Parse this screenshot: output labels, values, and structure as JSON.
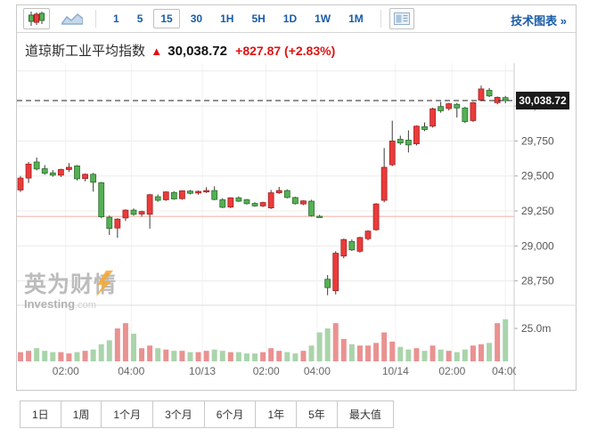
{
  "toolbar": {
    "candlestick_button": {
      "selected": true
    },
    "area_button": {
      "selected": false
    },
    "timeframes": [
      {
        "label": "1",
        "selected": false
      },
      {
        "label": "5",
        "selected": false
      },
      {
        "label": "15",
        "selected": true
      },
      {
        "label": "30",
        "selected": false
      },
      {
        "label": "1H",
        "selected": false
      },
      {
        "label": "5H",
        "selected": false
      },
      {
        "label": "1D",
        "selected": false
      },
      {
        "label": "1W",
        "selected": false
      },
      {
        "label": "1M",
        "selected": false
      }
    ],
    "link_label": "技术图表",
    "link_chevron": "»"
  },
  "header": {
    "instrument": "道琼斯工业平均指数",
    "direction_arrow": "▲",
    "last": "30,038.72",
    "change": "+827.87",
    "change_pct": "(+2.83%)"
  },
  "watermark": {
    "cn": "英为财情",
    "en": "Investing",
    "en_suffix": ".com"
  },
  "range_buttons": [
    {
      "label": "1日"
    },
    {
      "label": "1周"
    },
    {
      "label": "1个月"
    },
    {
      "label": "3个月"
    },
    {
      "label": "6个月"
    },
    {
      "label": "1年"
    },
    {
      "label": "5年"
    },
    {
      "label": "最大值"
    }
  ],
  "chart_data": {
    "type": "candlestick",
    "interval_selected": "15",
    "last_price": 30038.72,
    "last_price_label": "30,038.72",
    "previous_close": 29210.85,
    "price_axis_range": [
      28576,
      30306
    ],
    "volume_scale_max_m": 46,
    "grid": true,
    "y_ticks": [
      {
        "label": "30,000",
        "value": 30000
      },
      {
        "label": "29,750",
        "value": 29750
      },
      {
        "label": "29,500",
        "value": 29500
      },
      {
        "label": "29,250",
        "value": 29250
      },
      {
        "label": "29,000",
        "value": 29000
      },
      {
        "label": "28,750",
        "value": 28750
      }
    ],
    "unlabeled_gridline_values": [
      30250
    ],
    "volume_tick": {
      "label": "25.0m",
      "value_m": 25
    },
    "x_labels": [
      {
        "text": "02:00",
        "index": 5.6
      },
      {
        "text": "04:00",
        "index": 13.7
      },
      {
        "text": "10/13",
        "index": 22.5
      },
      {
        "text": "02:00",
        "index": 30.4
      },
      {
        "text": "04:00",
        "index": 36.7
      },
      {
        "text": "10/14",
        "index": 46.4
      },
      {
        "text": "02:00",
        "index": 53.4
      },
      {
        "text": "04:00",
        "index": 60
      }
    ],
    "colors": {
      "up": "#eb3b3a",
      "up_border": "#a02424",
      "down": "#54b054",
      "down_border": "#2e6e2e",
      "wick": "#3a3a3a",
      "vol_up": "#e99291",
      "vol_down": "#aad4ab",
      "grid": "#ececec",
      "axis_line": "#cccccc",
      "prev_close_line": "#f3b5ae",
      "current_price_line": "#222222",
      "price_label_bg": "#1b1b1b",
      "price_label_text": "#ffffff",
      "axis_text": "#555555",
      "x_axis_text": "#666666"
    },
    "candles_format": [
      "open",
      "high",
      "low",
      "close",
      "volume_millions"
    ],
    "candles": [
      [
        29400,
        29500,
        29385,
        29485,
        7
      ],
      [
        29485,
        29600,
        29450,
        29585,
        8
      ],
      [
        29600,
        29632,
        29540,
        29550,
        10
      ],
      [
        29552,
        29578,
        29508,
        29520,
        8
      ],
      [
        29522,
        29542,
        29494,
        29506,
        7
      ],
      [
        29506,
        29552,
        29492,
        29546,
        7
      ],
      [
        29546,
        29592,
        29528,
        29562,
        6
      ],
      [
        29572,
        29578,
        29468,
        29480,
        7
      ],
      [
        29482,
        29518,
        29462,
        29512,
        8
      ],
      [
        29512,
        29522,
        29388,
        29455,
        9
      ],
      [
        29452,
        29458,
        29198,
        29208,
        13
      ],
      [
        29205,
        29218,
        29078,
        29125,
        16
      ],
      [
        29128,
        29198,
        29058,
        29192,
        25
      ],
      [
        29200,
        29262,
        29178,
        29256,
        29
      ],
      [
        29256,
        29268,
        29216,
        29226,
        21
      ],
      [
        29228,
        29252,
        29210,
        29246,
        10
      ],
      [
        29226,
        29372,
        29124,
        29366,
        12
      ],
      [
        29352,
        29368,
        29316,
        29326,
        10
      ],
      [
        29330,
        29390,
        29322,
        29386,
        9
      ],
      [
        29382,
        29392,
        29330,
        29336,
        8
      ],
      [
        29338,
        29398,
        29330,
        29394,
        8
      ],
      [
        29392,
        29400,
        29368,
        29376,
        7
      ],
      [
        29378,
        29396,
        29366,
        29390,
        7
      ],
      [
        29386,
        29420,
        29378,
        29396,
        8
      ],
      [
        29396,
        29426,
        29326,
        29332,
        9
      ],
      [
        29330,
        29342,
        29270,
        29276,
        8
      ],
      [
        29278,
        29348,
        29270,
        29344,
        7
      ],
      [
        29344,
        29354,
        29314,
        29320,
        7
      ],
      [
        29330,
        29336,
        29296,
        29302,
        6
      ],
      [
        29304,
        29312,
        29280,
        29286,
        6
      ],
      [
        29286,
        29316,
        29278,
        29310,
        7
      ],
      [
        29272,
        29400,
        29264,
        29380,
        10
      ],
      [
        29380,
        29422,
        29372,
        29396,
        8
      ],
      [
        29396,
        29404,
        29340,
        29346,
        7
      ],
      [
        29346,
        29352,
        29296,
        29302,
        6
      ],
      [
        29300,
        29326,
        29292,
        29322,
        8
      ],
      [
        29320,
        29330,
        29210,
        29216,
        12
      ],
      [
        29212,
        29222,
        29202,
        29206,
        22
      ],
      [
        28762,
        28792,
        28648,
        28702,
        25
      ],
      [
        28680,
        28962,
        28654,
        28948,
        29
      ],
      [
        28928,
        29052,
        28912,
        29046,
        17
      ],
      [
        29032,
        29046,
        28964,
        28972,
        13
      ],
      [
        28962,
        29066,
        28952,
        29060,
        12
      ],
      [
        29052,
        29112,
        29040,
        29106,
        12
      ],
      [
        29116,
        29306,
        29108,
        29300,
        14
      ],
      [
        29326,
        29700,
        29312,
        29562,
        22
      ],
      [
        29580,
        29895,
        29570,
        29750,
        15
      ],
      [
        29762,
        29788,
        29722,
        29736,
        11
      ],
      [
        29756,
        29826,
        29668,
        29722,
        9
      ],
      [
        29730,
        29862,
        29718,
        29856,
        10
      ],
      [
        29852,
        29882,
        29820,
        29832,
        8
      ],
      [
        29856,
        29988,
        29846,
        29980,
        12
      ],
      [
        29996,
        30030,
        29952,
        29966,
        9
      ],
      [
        29982,
        30022,
        29968,
        30016,
        8
      ],
      [
        30012,
        30022,
        29918,
        29986,
        7
      ],
      [
        29986,
        29994,
        29878,
        29888,
        9
      ],
      [
        29896,
        30030,
        29886,
        30024,
        12
      ],
      [
        30042,
        30146,
        30036,
        30122,
        13
      ],
      [
        30112,
        30128,
        30064,
        30072,
        14
      ],
      [
        30024,
        30068,
        30012,
        30062,
        29
      ],
      [
        30060,
        30072,
        30020,
        30039,
        32
      ]
    ]
  }
}
